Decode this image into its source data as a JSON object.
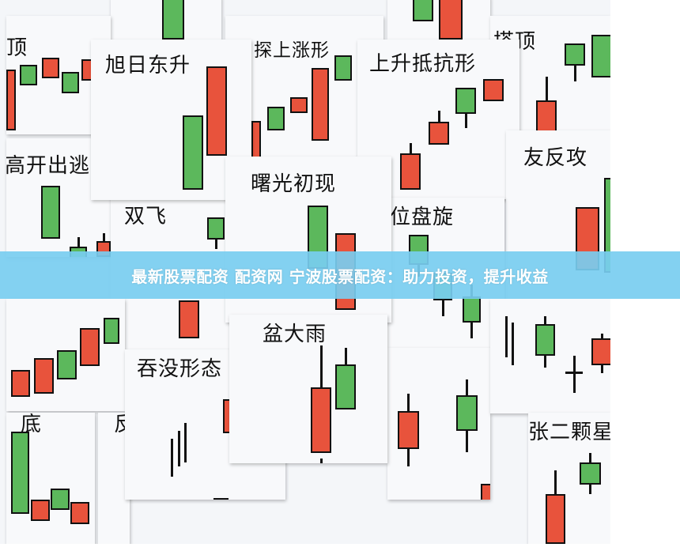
{
  "colors": {
    "up": "#e8533c",
    "down": "#5cb85c",
    "banner": "#78cdf0"
  },
  "cards": {
    "c1": "顶",
    "c2": "",
    "c3": "",
    "c4": "搭顶",
    "c5": "探上涨形",
    "c6": "高开出逃",
    "c7": "双飞",
    "c8": "旭日东升",
    "c9": "上升抵抗形",
    "c10": "友反攻",
    "c11": "位盘旋",
    "c12": "曙光初现",
    "c13": "",
    "c14": "底",
    "c15": "吞没形态",
    "c16": "盆大雨",
    "c17": "",
    "c18": "",
    "c19": "张二颗星",
    "c20": "反"
  },
  "banner": {
    "text": "最新股票配资 配资网 宁波股票配资：助力投资，提升收益"
  }
}
